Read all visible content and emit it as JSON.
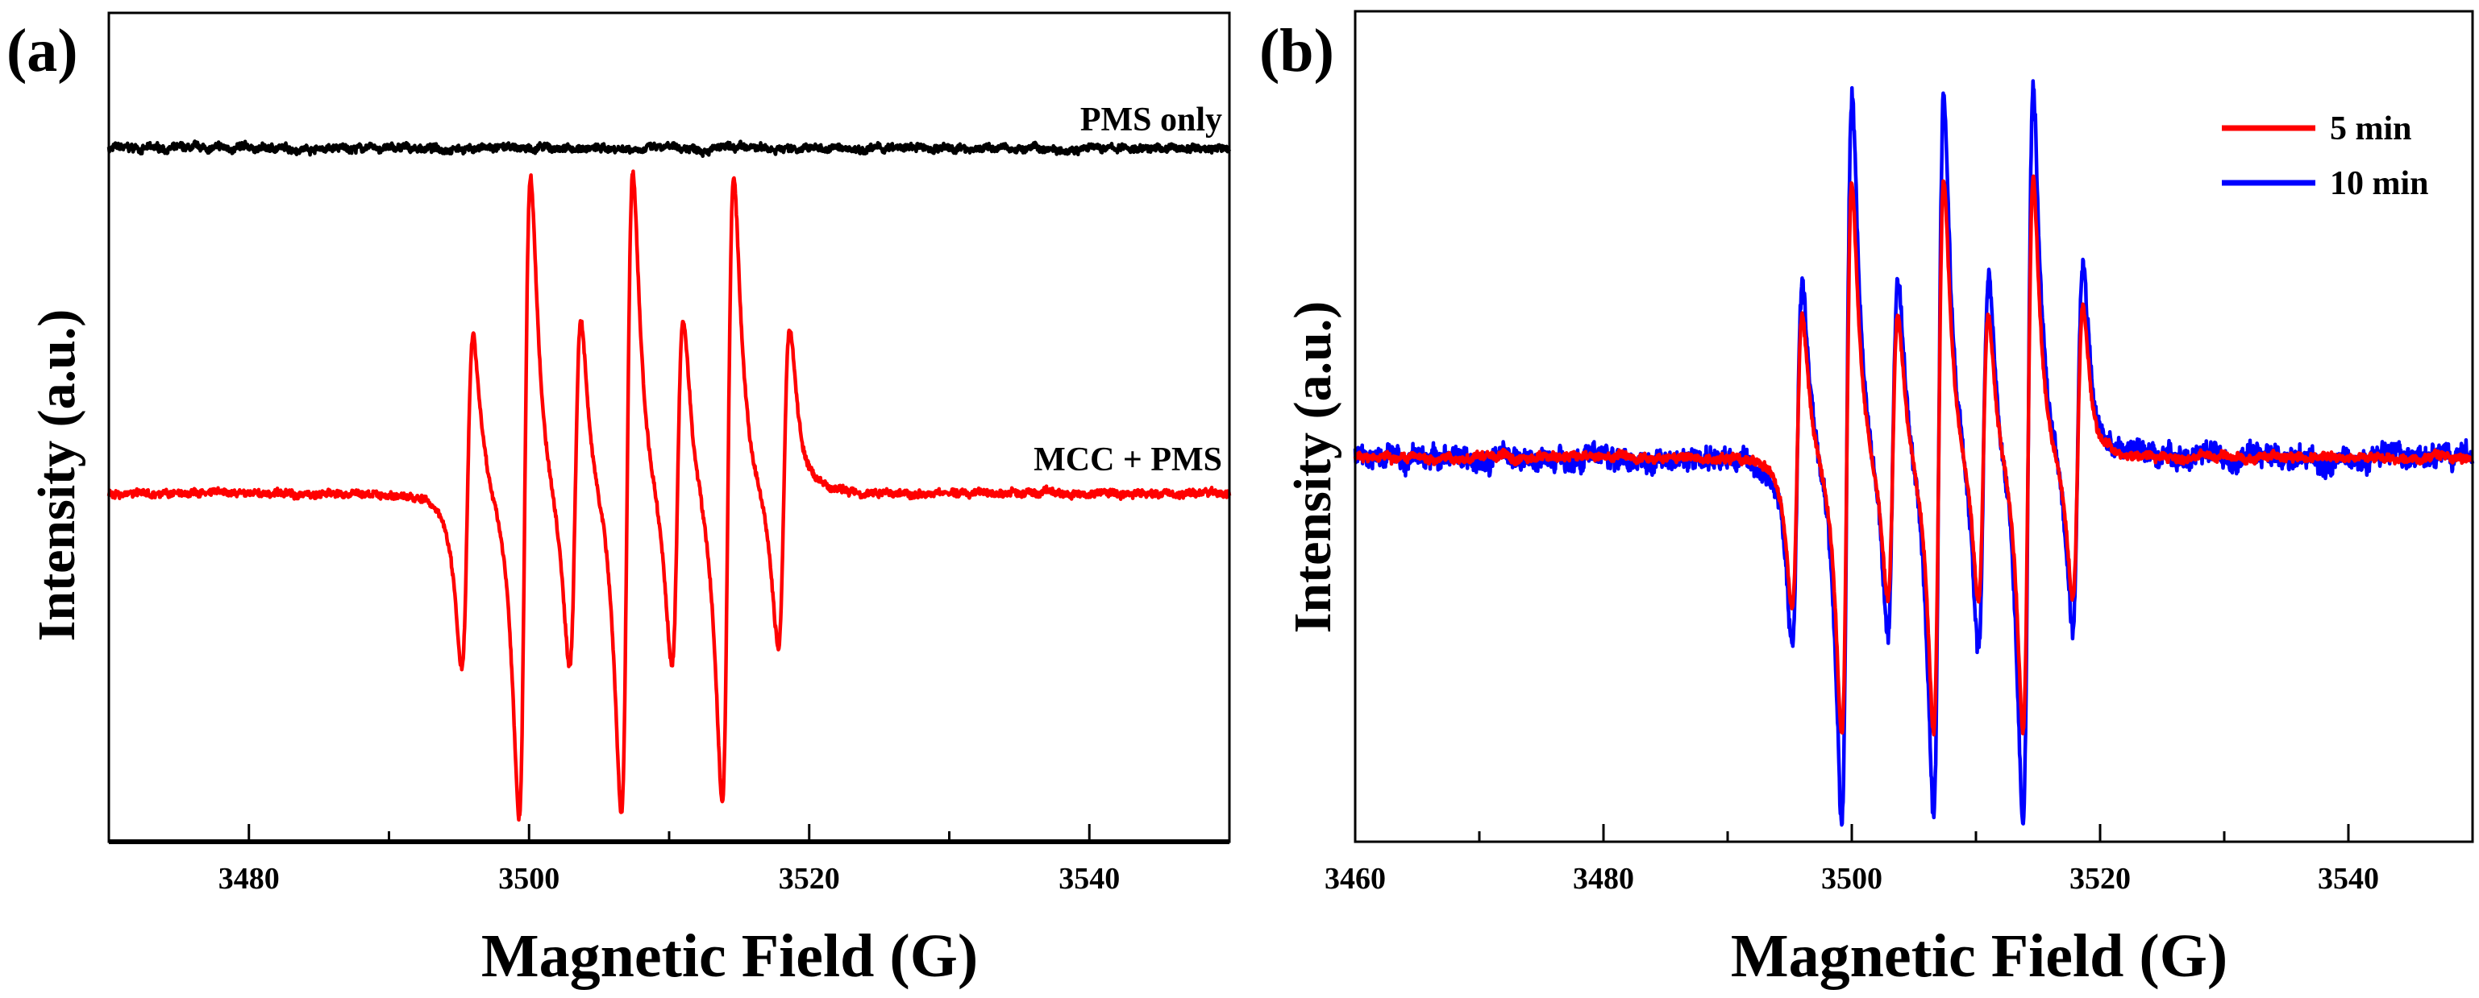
{
  "chart_data": [
    {
      "type": "line",
      "panel_label": "(a)",
      "xlabel": "Magnetic Field (G)",
      "ylabel": "Intensity (a.u.)",
      "xlim": [
        3470,
        3550
      ],
      "ylim": [
        -1.08,
        1.49
      ],
      "xticks": [
        3480,
        3500,
        3520,
        3540
      ],
      "xminor": [
        3490,
        3510,
        3530
      ],
      "xtick_labels": [
        "3480",
        "3500",
        "3520",
        "3540"
      ],
      "grid": false,
      "series": [
        {
          "name": "PMS only",
          "color": "#000000",
          "offset": 1.07,
          "noise": 0.012,
          "peaks": []
        },
        {
          "name": "MCC + PMS",
          "color": "#ff0000",
          "offset": 0.0,
          "noise": 0.012,
          "linewidth_G": 0.72,
          "peaks": [
            {
              "field": 3495.6,
              "amplitude": 0.52
            },
            {
              "field": 3499.7,
              "amplitude": 1.0
            },
            {
              "field": 3503.3,
              "amplitude": 0.55
            },
            {
              "field": 3507.0,
              "amplitude": 1.0
            },
            {
              "field": 3510.6,
              "amplitude": 0.55
            },
            {
              "field": 3514.2,
              "amplitude": 0.97
            },
            {
              "field": 3518.2,
              "amplitude": 0.5
            }
          ]
        }
      ],
      "annotations": [
        "PMS only",
        "MCC + PMS"
      ]
    },
    {
      "type": "line",
      "panel_label": "(b)",
      "xlabel": "Magnetic Field (G)",
      "ylabel": "Intensity (a.u.)",
      "xlim": [
        3460,
        3550
      ],
      "ylim": [
        -1.05,
        1.22
      ],
      "xticks": [
        3460,
        3480,
        3500,
        3520,
        3540
      ],
      "xminor": [
        3470,
        3490,
        3510,
        3530
      ],
      "xtick_labels": [
        "3460",
        "3480",
        "3500",
        "3520",
        "3540"
      ],
      "grid": false,
      "legend_position": "top-right",
      "series": [
        {
          "name": "10 min",
          "color": "#0000ff",
          "offset": 0.0,
          "noise": 0.03,
          "linewidth_G": 0.72,
          "peaks": [
            {
              "field": 3495.6,
              "amplitude": 0.5
            },
            {
              "field": 3499.6,
              "amplitude": 1.0
            },
            {
              "field": 3503.3,
              "amplitude": 0.5
            },
            {
              "field": 3507.0,
              "amplitude": 1.0
            },
            {
              "field": 3510.6,
              "amplitude": 0.52
            },
            {
              "field": 3514.2,
              "amplitude": 1.0
            },
            {
              "field": 3518.2,
              "amplitude": 0.5
            }
          ]
        },
        {
          "name": "5 min",
          "color": "#ff0000",
          "offset": 0.0,
          "noise": 0.012,
          "linewidth_G": 0.72,
          "peaks": [
            {
              "field": 3495.6,
              "amplitude": 0.4
            },
            {
              "field": 3499.6,
              "amplitude": 0.76
            },
            {
              "field": 3503.3,
              "amplitude": 0.4
            },
            {
              "field": 3507.0,
              "amplitude": 0.76
            },
            {
              "field": 3510.6,
              "amplitude": 0.4
            },
            {
              "field": 3514.2,
              "amplitude": 0.76
            },
            {
              "field": 3518.2,
              "amplitude": 0.4
            }
          ]
        }
      ],
      "legend": [
        "5 min",
        "10 min"
      ]
    }
  ]
}
